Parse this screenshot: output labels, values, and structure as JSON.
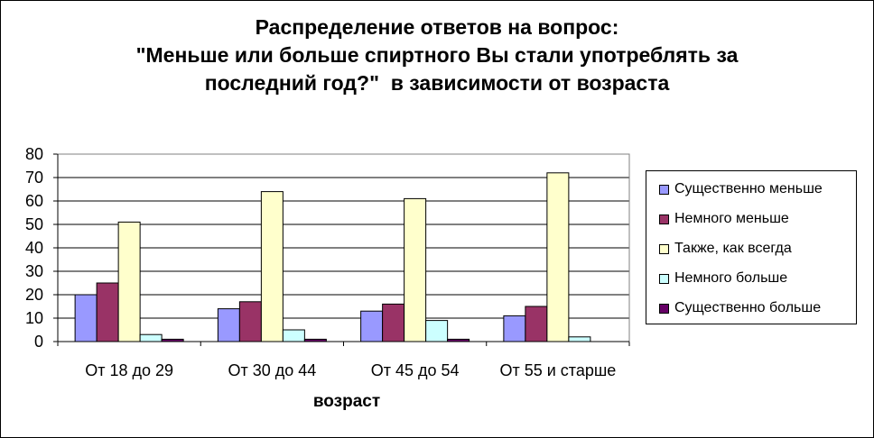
{
  "chart_data": {
    "type": "bar",
    "title_lines": [
      "Распределение ответов на вопрос:",
      "\"Меньше или больше спиртного Вы стали употреблять за",
      "последний год?\"  в зависимости от возраста"
    ],
    "xlabel": "возраст",
    "ylabel": "",
    "ylim": [
      0,
      80
    ],
    "yticks": [
      "0",
      "10",
      "20",
      "30",
      "40",
      "50",
      "60",
      "70",
      "80"
    ],
    "grid": true,
    "legend_position": "right",
    "categories": [
      "От 18 до 29",
      "От 30 до 44",
      "От 45 до 54",
      "От 55 и старше"
    ],
    "series": [
      {
        "name": "Существенно меньше",
        "color": "#9999ff",
        "values": [
          20,
          14,
          13,
          11
        ]
      },
      {
        "name": "Немного меньше",
        "color": "#993366",
        "values": [
          25,
          17,
          16,
          15
        ]
      },
      {
        "name": "Также, как всегда",
        "color": "#ffffcc",
        "values": [
          51,
          64,
          61,
          72
        ]
      },
      {
        "name": "Немного больше",
        "color": "#ccffff",
        "values": [
          3,
          5,
          9,
          2
        ]
      },
      {
        "name": "Существенно больше",
        "color": "#660066",
        "values": [
          1,
          1,
          1,
          0
        ]
      }
    ]
  }
}
